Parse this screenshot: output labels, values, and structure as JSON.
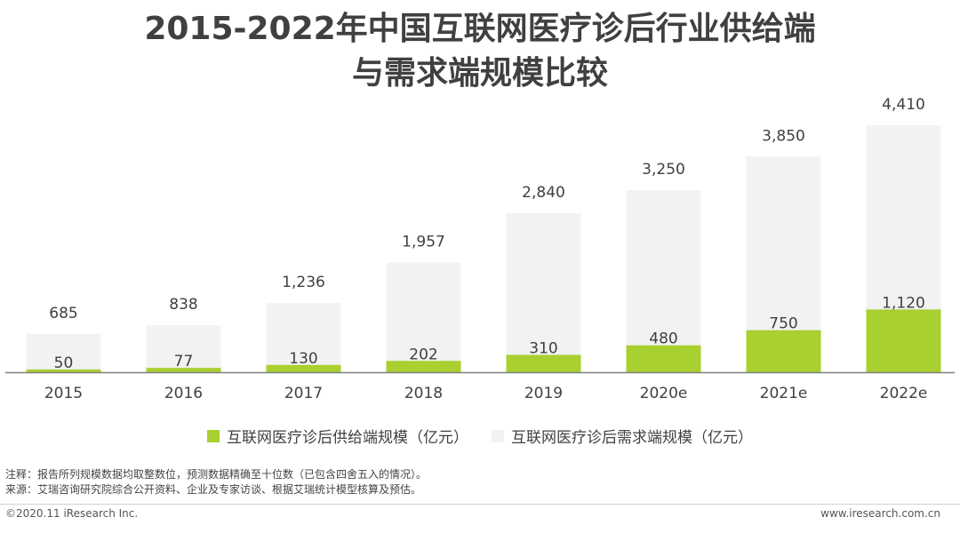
{
  "title": {
    "line1": "2015-2022年中国互联网医疗诊后行业供给端",
    "line2": "与需求端规模比较"
  },
  "colors": {
    "supply": "#a8d02e",
    "demand": "#f2f2f2",
    "axis": "#7f7f7f"
  },
  "chart_data": {
    "type": "bar",
    "title": "2015-2022年中国互联网医疗诊后行业供给端与需求端规模比较",
    "xlabel": "",
    "ylabel": "",
    "ylim": [
      0,
      4500
    ],
    "categories": [
      "2015",
      "2016",
      "2017",
      "2018",
      "2019",
      "2020e",
      "2021e",
      "2022e"
    ],
    "series": [
      {
        "name": "互联网医疗诊后供给端规模（亿元）",
        "values": [
          50,
          77,
          130,
          202,
          310,
          480,
          750,
          1120
        ],
        "labels": [
          "50",
          "77",
          "130",
          "202",
          "310",
          "480",
          "750",
          "1,120"
        ]
      },
      {
        "name": "互联网医疗诊后需求端规模（亿元）",
        "values": [
          685,
          838,
          1236,
          1957,
          2840,
          3250,
          3850,
          4410
        ],
        "labels": [
          "685",
          "838",
          "1,236",
          "1,957",
          "2,840",
          "3,250",
          "3,850",
          "4,410"
        ]
      }
    ],
    "overlapped": true,
    "grid": false,
    "legend": "bottom"
  },
  "legend": {
    "supply_label": "互联网医疗诊后供给端规模（亿元）",
    "demand_label": "互联网医疗诊后需求端规模（亿元）"
  },
  "notes": {
    "note": "注释：报告所列规模数据均取整数位，预测数据精确至十位数（已包含四舍五入的情况）。",
    "source": "来源：艾瑞咨询研究院综合公开资料、企业及专家访谈、根据艾瑞统计模型核算及预估。"
  },
  "footer": {
    "copyright": "©2020.11 iResearch Inc.",
    "website": "www.iresearch.com.cn"
  }
}
